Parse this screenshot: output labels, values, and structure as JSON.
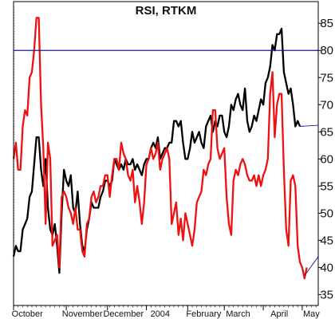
{
  "chart_data": {
    "type": "line",
    "title": "RSI, RTKM",
    "xlabel": "",
    "ylabel": "",
    "x_range": [
      0,
      133
    ],
    "ylim": [
      33,
      89
    ],
    "y_ticks": [
      35,
      40,
      45,
      50,
      55,
      60,
      65,
      70,
      75,
      80,
      85
    ],
    "x_tick_labels": [
      {
        "label": "October",
        "x": 6
      },
      {
        "label": "November",
        "x": 30
      },
      {
        "label": "December",
        "x": 48
      },
      {
        "label": "2004",
        "x": 64
      },
      {
        "label": "February",
        "x": 83
      },
      {
        "label": "March",
        "x": 98
      },
      {
        "label": "April",
        "x": 116
      },
      {
        "label": "May",
        "x": 130
      }
    ],
    "x_tick_marks": [
      0,
      23,
      41,
      58,
      76,
      92,
      109,
      126
    ],
    "reference_line": {
      "y": 80,
      "color": "#1a1aa0"
    },
    "grid": false,
    "legend": "none",
    "series": [
      {
        "color": "#000000",
        "x": [
          0,
          1,
          2,
          3,
          4,
          5,
          6,
          7,
          8,
          9,
          10,
          11,
          12,
          13,
          14,
          15,
          16,
          17,
          18,
          19,
          20,
          21,
          22,
          23,
          24,
          25,
          26,
          27,
          28,
          29,
          30,
          31,
          32,
          33,
          34,
          35,
          36,
          37,
          38,
          39,
          40,
          41,
          42,
          43,
          44,
          45,
          46,
          47,
          48,
          49,
          50,
          51,
          52,
          53,
          54,
          55,
          56,
          57,
          58,
          59,
          60,
          61,
          62,
          63,
          64,
          65,
          66,
          67,
          68,
          69,
          70,
          71,
          72,
          73,
          74,
          75,
          76,
          77,
          78,
          79,
          80,
          81,
          82,
          83,
          84,
          85,
          86,
          87,
          88,
          89,
          90,
          91,
          92,
          93,
          94,
          95,
          96,
          97,
          98,
          99,
          100,
          101,
          102,
          103,
          104,
          105,
          106,
          107,
          108,
          109,
          110,
          111,
          112,
          113,
          114,
          115,
          116,
          117,
          118,
          119,
          120,
          121,
          122,
          123,
          124,
          125
        ],
        "values": [
          42,
          44,
          43,
          43,
          47,
          48,
          49,
          53,
          54,
          59,
          64,
          64,
          58,
          55,
          60,
          51,
          47,
          46,
          48,
          44,
          39,
          50,
          58,
          56,
          55,
          57,
          51,
          50,
          54,
          48,
          44,
          43,
          47,
          49,
          52,
          51,
          51,
          51,
          53,
          54,
          56,
          56,
          55,
          56,
          60,
          59,
          58,
          59,
          58,
          60,
          59,
          59,
          60,
          58,
          59,
          58,
          57,
          59,
          60,
          60,
          62,
          63,
          62,
          64,
          60,
          61,
          62,
          62,
          63,
          63,
          67,
          67,
          66,
          67,
          63,
          60,
          60,
          62,
          65,
          63,
          64,
          65,
          63,
          62,
          66,
          67,
          68,
          65,
          67,
          66,
          68,
          68,
          65,
          64,
          66,
          70,
          69,
          71,
          72,
          70,
          69,
          73,
          67,
          65,
          66,
          68,
          67,
          69,
          71,
          70,
          74,
          75,
          77,
          81,
          80,
          83,
          83,
          84,
          76,
          74,
          72,
          73,
          70,
          66,
          67,
          66
        ],
        "width": 2.3
      },
      {
        "color": "#ee1111",
        "x": [
          0,
          1,
          2,
          3,
          4,
          5,
          6,
          7,
          8,
          9,
          10,
          11,
          12,
          13,
          14,
          15,
          16,
          17,
          18,
          19,
          20,
          21,
          22,
          23,
          24,
          25,
          26,
          27,
          28,
          29,
          30,
          31,
          32,
          33,
          34,
          35,
          36,
          37,
          38,
          39,
          40,
          41,
          42,
          43,
          44,
          45,
          46,
          47,
          48,
          49,
          50,
          51,
          52,
          53,
          54,
          55,
          56,
          57,
          58,
          59,
          60,
          61,
          62,
          63,
          64,
          65,
          66,
          67,
          68,
          69,
          70,
          71,
          72,
          73,
          74,
          75,
          76,
          77,
          78,
          79,
          80,
          81,
          82,
          83,
          84,
          85,
          86,
          87,
          88,
          89,
          90,
          91,
          92,
          93,
          94,
          95,
          96,
          97,
          98,
          99,
          100,
          101,
          102,
          103,
          104,
          105,
          106,
          107,
          108,
          109,
          110,
          111,
          112,
          113,
          114,
          115,
          116,
          117,
          118,
          119,
          120,
          121,
          122,
          123,
          124,
          125,
          126,
          127,
          128
        ],
        "values": [
          60,
          63,
          58,
          58,
          66,
          69,
          68,
          75,
          76,
          80,
          86,
          86,
          70,
          62,
          48,
          63,
          60,
          44,
          45,
          46,
          40,
          53,
          54,
          53,
          51,
          50,
          48,
          51,
          47,
          47,
          43,
          42,
          48,
          49,
          53,
          54,
          52,
          53,
          55,
          55,
          57,
          57,
          53,
          57,
          60,
          60,
          58,
          63,
          61,
          60,
          57,
          56,
          58,
          52,
          55,
          52,
          48,
          52,
          59,
          60,
          62,
          60,
          61,
          63,
          58,
          60,
          61,
          62,
          60,
          48,
          50,
          52,
          46,
          49,
          45,
          50,
          48,
          46,
          44,
          47,
          52,
          53,
          54,
          58,
          57,
          59,
          60,
          69,
          69,
          62,
          60,
          61,
          62,
          53,
          48,
          46,
          56,
          58,
          57,
          59,
          60,
          59,
          57,
          56,
          56,
          57,
          55,
          57,
          55,
          57,
          58,
          60,
          72,
          76,
          64,
          70,
          72,
          72,
          58,
          47,
          44,
          56,
          57,
          55,
          44,
          41,
          40,
          38,
          40
        ],
        "width": 2.3
      },
      {
        "color": "#1a1aa0",
        "x": [
          125,
          133
        ],
        "values": [
          66,
          66.2
        ],
        "width": 0.9
      },
      {
        "color": "#1a1aa0",
        "x": [
          127,
          133
        ],
        "values": [
          38.5,
          42
        ],
        "width": 0.9
      }
    ]
  }
}
